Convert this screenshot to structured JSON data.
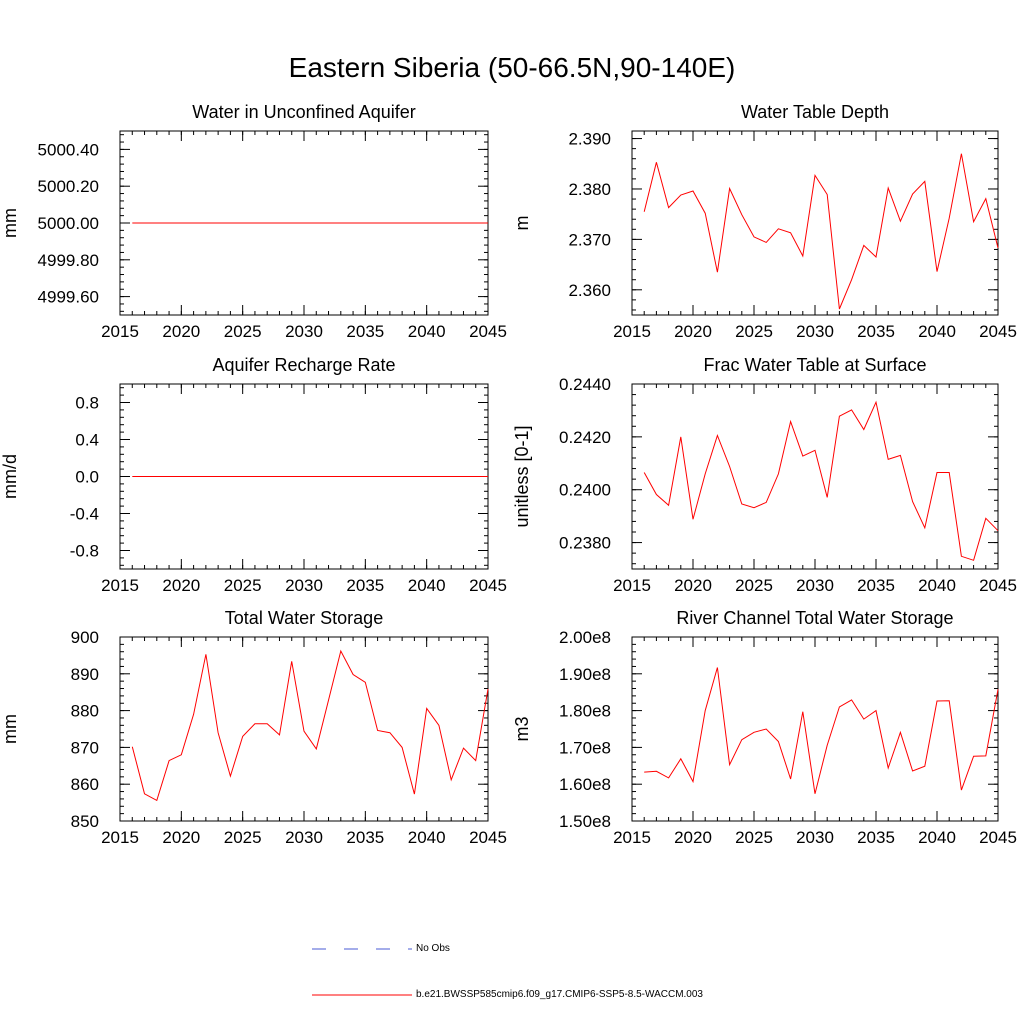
{
  "title": "Eastern Siberia (50-66.5N,90-140E)",
  "colors": {
    "model": "#ff0000",
    "obs": "#4a5bd6",
    "axis": "#000000"
  },
  "legend": {
    "items": [
      {
        "label": "No Obs",
        "style": "dashed",
        "color": "#4a5bd6"
      },
      {
        "label": "b.e21.BWSSP585cmip6.f09_g17.CMIP6-SSP5-8.5-WACCM.003",
        "style": "solid",
        "color": "#ff0000"
      }
    ]
  },
  "chart_data": [
    {
      "type": "line",
      "title": "Water in Unconfined Aquifer",
      "ylabel": "mm",
      "xlim": [
        2015,
        2045
      ],
      "ylim": [
        4999.5,
        5000.5
      ],
      "xticks": [
        2015,
        2020,
        2025,
        2030,
        2035,
        2040,
        2045
      ],
      "yticks": [
        4999.6,
        4999.8,
        5000.0,
        5000.2,
        5000.4
      ],
      "ytick_labels": [
        "4999.60",
        "4999.80",
        "5000.00",
        "5000.20",
        "5000.40"
      ],
      "xminor": 1,
      "yminor": 0.04,
      "x": [
        2016,
        2017,
        2018,
        2019,
        2020,
        2021,
        2022,
        2023,
        2024,
        2025,
        2026,
        2027,
        2028,
        2029,
        2030,
        2031,
        2032,
        2033,
        2034,
        2035,
        2036,
        2037,
        2038,
        2039,
        2040,
        2041,
        2042,
        2043,
        2044,
        2045
      ],
      "series": [
        {
          "values": [
            5000,
            5000,
            5000,
            5000,
            5000,
            5000,
            5000,
            5000,
            5000,
            5000,
            5000,
            5000,
            5000,
            5000,
            5000,
            5000,
            5000,
            5000,
            5000,
            5000,
            5000,
            5000,
            5000,
            5000,
            5000,
            5000,
            5000,
            5000,
            5000,
            5000
          ]
        }
      ]
    },
    {
      "type": "line",
      "title": "Water Table Depth",
      "ylabel": "m",
      "xlim": [
        2015,
        2045
      ],
      "ylim": [
        2.355,
        2.3915
      ],
      "xticks": [
        2015,
        2020,
        2025,
        2030,
        2035,
        2040,
        2045
      ],
      "yticks": [
        2.36,
        2.37,
        2.38,
        2.39
      ],
      "ytick_labels": [
        "2.360",
        "2.370",
        "2.380",
        "2.390"
      ],
      "xminor": 1,
      "yminor": 0.002,
      "x": [
        2016,
        2017,
        2018,
        2019,
        2020,
        2021,
        2022,
        2023,
        2024,
        2025,
        2026,
        2027,
        2028,
        2029,
        2030,
        2031,
        2032,
        2033,
        2034,
        2035,
        2036,
        2037,
        2038,
        2039,
        2040,
        2041,
        2042,
        2043,
        2044,
        2045
      ],
      "series": [
        {
          "values": [
            2.3755,
            2.3853,
            2.3763,
            2.3788,
            2.3796,
            2.3752,
            2.3635,
            2.3801,
            2.3749,
            2.3705,
            2.3694,
            2.3721,
            2.3713,
            2.3667,
            2.3827,
            2.3789,
            2.3562,
            2.362,
            2.3688,
            2.3665,
            2.3802,
            2.3736,
            2.379,
            2.3815,
            2.3636,
            2.3742,
            2.387,
            2.3735,
            2.3781,
            2.3683
          ]
        }
      ]
    },
    {
      "type": "line",
      "title": "Aquifer Recharge Rate",
      "ylabel": "mm/d",
      "xlim": [
        2015,
        2045
      ],
      "ylim": [
        -1.0,
        1.0
      ],
      "xticks": [
        2015,
        2020,
        2025,
        2030,
        2035,
        2040,
        2045
      ],
      "yticks": [
        -0.8,
        -0.4,
        0.0,
        0.4,
        0.8
      ],
      "ytick_labels": [
        "-0.8",
        "-0.4",
        "0.0",
        "0.4",
        "0.8"
      ],
      "xminor": 1,
      "yminor": 0.08,
      "x": [
        2016,
        2017,
        2018,
        2019,
        2020,
        2021,
        2022,
        2023,
        2024,
        2025,
        2026,
        2027,
        2028,
        2029,
        2030,
        2031,
        2032,
        2033,
        2034,
        2035,
        2036,
        2037,
        2038,
        2039,
        2040,
        2041,
        2042,
        2043,
        2044,
        2045
      ],
      "series": [
        {
          "values": [
            0,
            0,
            0,
            0,
            0,
            0,
            0,
            0,
            0,
            0,
            0,
            0,
            0,
            0,
            0,
            0,
            0,
            0,
            0,
            0,
            0,
            0,
            0,
            0,
            0,
            0,
            0,
            0,
            0,
            0
          ]
        }
      ]
    },
    {
      "type": "line",
      "title": "Frac Water Table at Surface",
      "ylabel": "unitless [0-1]",
      "xlim": [
        2015,
        2045
      ],
      "ylim": [
        0.237,
        0.244
      ],
      "xticks": [
        2015,
        2020,
        2025,
        2030,
        2035,
        2040,
        2045
      ],
      "yticks": [
        0.238,
        0.24,
        0.242,
        0.244
      ],
      "ytick_labels": [
        "0.2380",
        "0.2400",
        "0.2420",
        "0.2440"
      ],
      "xminor": 1,
      "yminor": 0.0004,
      "x": [
        2016,
        2017,
        2018,
        2019,
        2020,
        2021,
        2022,
        2023,
        2024,
        2025,
        2026,
        2027,
        2028,
        2029,
        2030,
        2031,
        2032,
        2033,
        2034,
        2035,
        2036,
        2037,
        2038,
        2039,
        2040,
        2041,
        2042,
        2043,
        2044,
        2045
      ],
      "series": [
        {
          "values": [
            0.24065,
            0.23982,
            0.23941,
            0.242,
            0.23888,
            0.2406,
            0.24205,
            0.24088,
            0.23946,
            0.23932,
            0.23952,
            0.2406,
            0.24258,
            0.24127,
            0.24149,
            0.23971,
            0.24278,
            0.24302,
            0.24228,
            0.24331,
            0.24115,
            0.2413,
            0.23955,
            0.23856,
            0.24065,
            0.24065,
            0.23748,
            0.23733,
            0.23892,
            0.23845
          ]
        }
      ]
    },
    {
      "type": "line",
      "title": "Total Water Storage",
      "ylabel": "mm",
      "xlim": [
        2015,
        2045
      ],
      "ylim": [
        850,
        900
      ],
      "xticks": [
        2015,
        2020,
        2025,
        2030,
        2035,
        2040,
        2045
      ],
      "yticks": [
        850,
        860,
        870,
        880,
        890,
        900
      ],
      "ytick_labels": [
        "850",
        "860",
        "870",
        "880",
        "890",
        "900"
      ],
      "xminor": 1,
      "yminor": 2,
      "x": [
        2016,
        2017,
        2018,
        2019,
        2020,
        2021,
        2022,
        2023,
        2024,
        2025,
        2026,
        2027,
        2028,
        2029,
        2030,
        2031,
        2032,
        2033,
        2034,
        2035,
        2036,
        2037,
        2038,
        2039,
        2040,
        2041,
        2042,
        2043,
        2044,
        2045
      ],
      "series": [
        {
          "values": [
            870.2,
            857.4,
            855.6,
            866.4,
            868.0,
            879.0,
            895.3,
            874.0,
            862.2,
            873.0,
            876.4,
            876.4,
            873.4,
            893.4,
            874.4,
            869.6,
            882.8,
            896.2,
            889.8,
            887.7,
            874.6,
            874.0,
            870.0,
            857.3,
            880.6,
            876.0,
            861.2,
            869.8,
            866.4,
            885.9
          ]
        }
      ]
    },
    {
      "type": "line",
      "title": "River Channel Total Water Storage",
      "ylabel": "m3",
      "xlim": [
        2015,
        2045
      ],
      "ylim": [
        150000000,
        200000000
      ],
      "xticks": [
        2015,
        2020,
        2025,
        2030,
        2035,
        2040,
        2045
      ],
      "yticks": [
        150000000,
        160000000,
        170000000,
        180000000,
        190000000,
        200000000
      ],
      "ytick_labels": [
        "1.50e8",
        "1.60e8",
        "1.70e8",
        "1.80e8",
        "1.90e8",
        "2.00e8"
      ],
      "xminor": 1,
      "yminor": 2000000,
      "x": [
        2016,
        2017,
        2018,
        2019,
        2020,
        2021,
        2022,
        2023,
        2024,
        2025,
        2026,
        2027,
        2028,
        2029,
        2030,
        2031,
        2032,
        2033,
        2034,
        2035,
        2036,
        2037,
        2038,
        2039,
        2040,
        2041,
        2042,
        2043,
        2044,
        2045
      ],
      "series": [
        {
          "values": [
            163300000,
            163500000,
            161700000,
            166900000,
            160700000,
            180000000,
            191700000,
            165300000,
            172100000,
            174100000,
            175000000,
            171600000,
            161400000,
            179700000,
            157400000,
            170600000,
            181000000,
            182900000,
            177700000,
            180000000,
            164400000,
            174100000,
            163600000,
            164900000,
            182600000,
            182700000,
            158400000,
            167600000,
            167700000,
            185800000
          ]
        }
      ]
    }
  ]
}
